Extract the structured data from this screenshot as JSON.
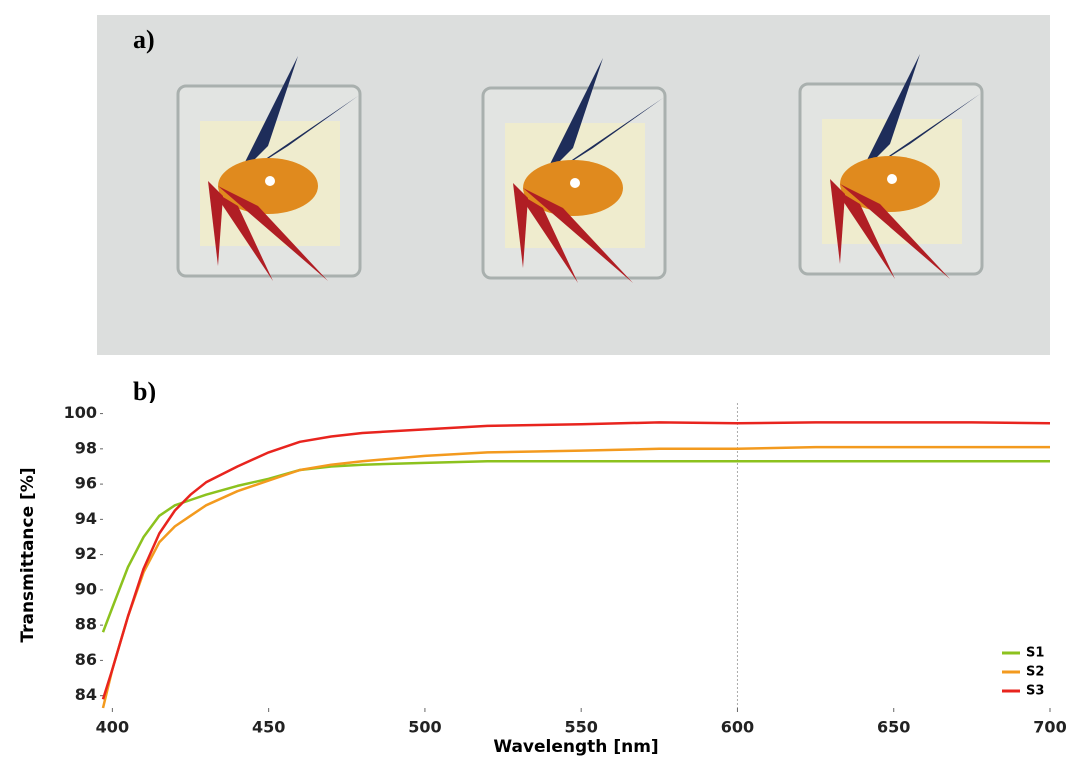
{
  "panel_a": {
    "label": "a)"
  },
  "chart_data": {
    "type": "line",
    "label": "b)",
    "xlabel": "Wavelength [nm]",
    "ylabel": "Transmittance [%]",
    "x": [
      397,
      400,
      405,
      410,
      415,
      420,
      425,
      430,
      440,
      450,
      460,
      470,
      480,
      500,
      520,
      550,
      575,
      600,
      625,
      650,
      675,
      700
    ],
    "series": [
      {
        "name": "S1",
        "color": "#8cc21e",
        "values": [
          87.6,
          89,
          91.3,
          93,
          94.2,
          94.8,
          95.1,
          95.4,
          95.9,
          96.3,
          96.8,
          97,
          97.1,
          97.2,
          97.3,
          97.3,
          97.3,
          97.3,
          97.3,
          97.3,
          97.3,
          97.3
        ]
      },
      {
        "name": "S2",
        "color": "#f39a1e",
        "values": [
          83.3,
          85.5,
          88.5,
          91,
          92.7,
          93.6,
          94.2,
          94.8,
          95.6,
          96.2,
          96.8,
          97.1,
          97.3,
          97.6,
          97.8,
          97.9,
          98,
          98,
          98.1,
          98.1,
          98.1,
          98.1
        ]
      },
      {
        "name": "S3",
        "color": "#e8241e",
        "values": [
          83.8,
          85.5,
          88.5,
          91.2,
          93.2,
          94.5,
          95.4,
          96.1,
          97,
          97.8,
          98.4,
          98.7,
          98.9,
          99.1,
          99.3,
          99.4,
          99.5,
          99.45,
          99.5,
          99.5,
          99.5,
          99.45
        ]
      }
    ],
    "xlim": [
      397,
      700
    ],
    "ylim": [
      83.3,
      100.6
    ],
    "xticks": [
      400,
      450,
      500,
      550,
      600,
      650,
      700
    ],
    "yticks": [
      84,
      86,
      88,
      90,
      92,
      94,
      96,
      98,
      100
    ],
    "cursor_x": 600,
    "legend": "lower right"
  }
}
